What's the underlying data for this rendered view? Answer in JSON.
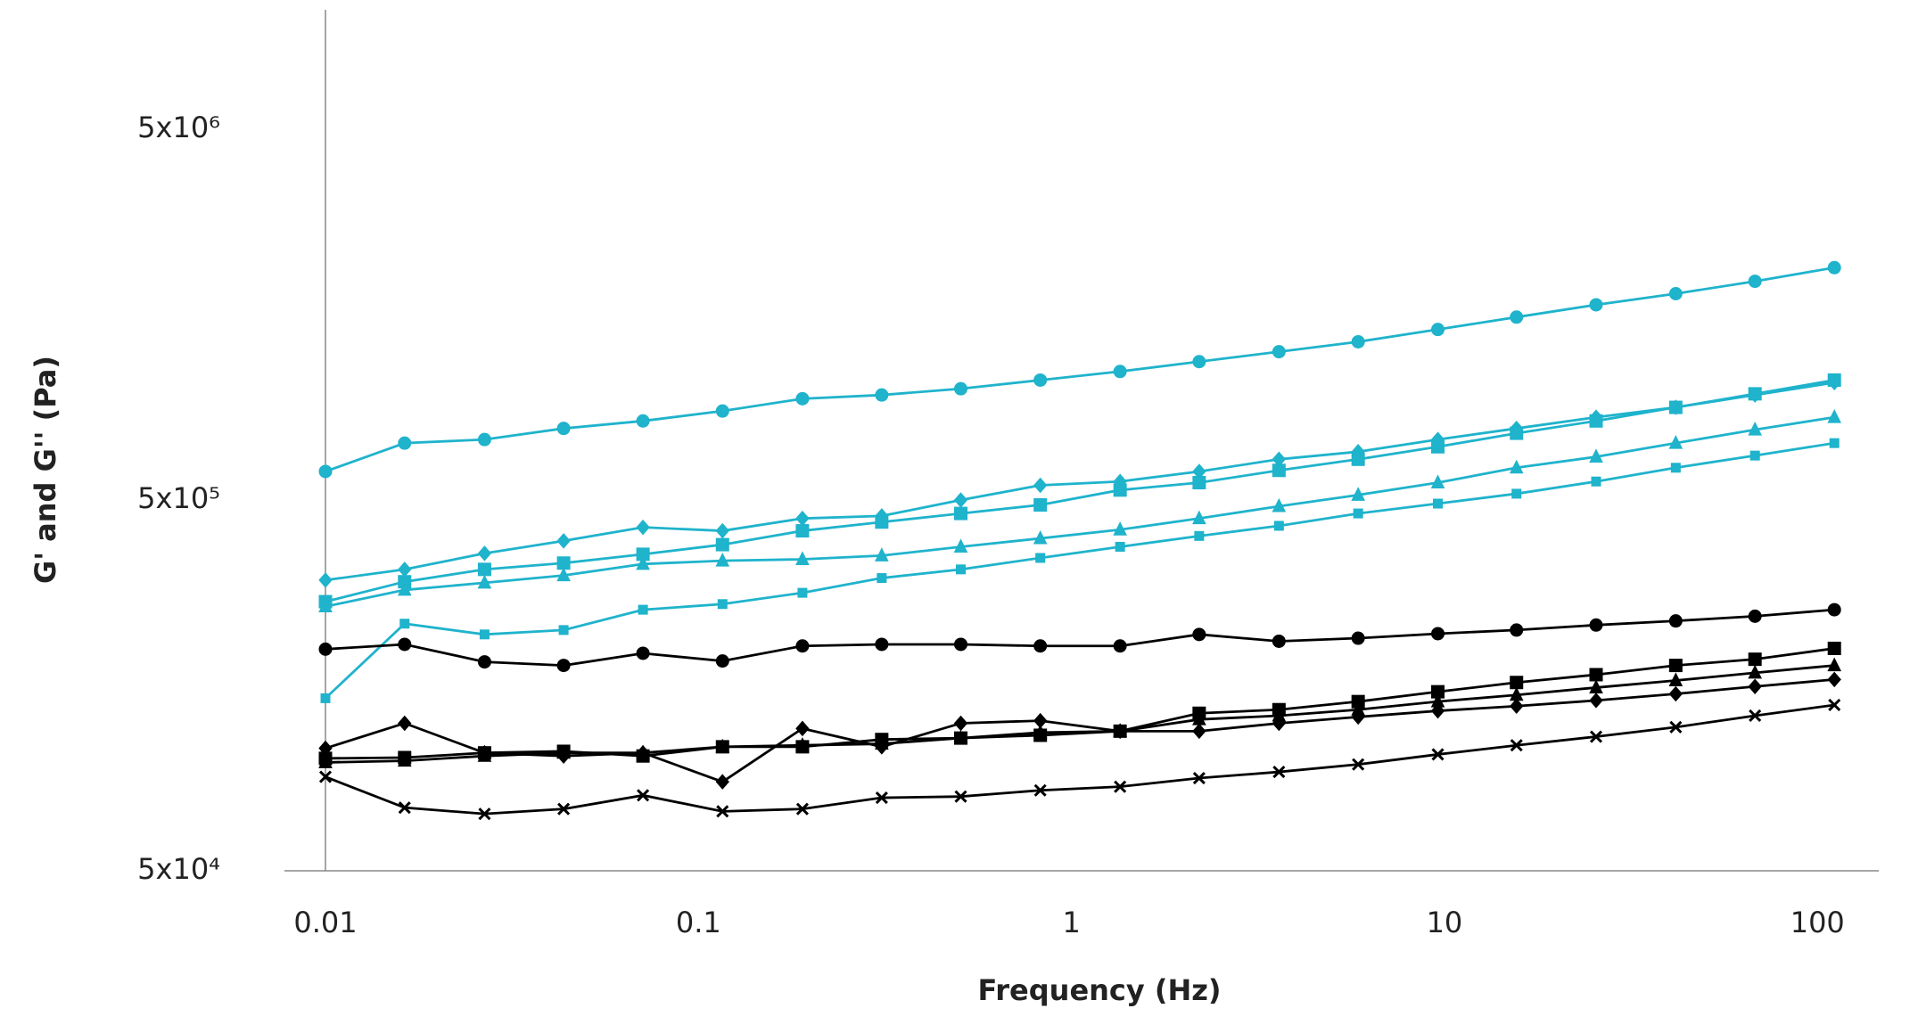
{
  "chart_data": {
    "type": "line",
    "x_label": "Frequency (Hz)",
    "y_label": "G' and G'' (Pa)",
    "x_log": true,
    "y_log": true,
    "grid": false,
    "xlim": [
      0.01,
      146
    ],
    "xticks": [
      0.01,
      0.1,
      1,
      10,
      100
    ],
    "ylim": [
      50000,
      10500000
    ],
    "yticks": [
      {
        "value": 50000,
        "label": "5x10⁴"
      },
      {
        "value": 500000,
        "label": "5x10⁵"
      },
      {
        "value": 5000000,
        "label": "5x10⁶"
      }
    ],
    "x": [
      0.01,
      0.0163,
      0.0267,
      0.0435,
      0.071,
      0.116,
      0.19,
      0.31,
      0.505,
      0.825,
      1.35,
      2.2,
      3.6,
      5.87,
      9.6,
      15.6,
      25.5,
      41.7,
      68,
      111
    ],
    "series": [
      {
        "color": "#1fb3cc",
        "marker": "circle",
        "values": [
          597000,
          712000,
          728000,
          780000,
          817000,
          869000,
          938000,
          960000,
          998000,
          1053000,
          1111000,
          1181000,
          1256000,
          1336000,
          1442000,
          1557000,
          1681000,
          1801000,
          1945000,
          2117000
        ]
      },
      {
        "color": "#1fb3cc",
        "marker": "diamond",
        "values": [
          304000,
          325000,
          359000,
          388000,
          422000,
          413000,
          446000,
          453000,
          500000,
          548000,
          561000,
          597000,
          644000,
          675000,
          728000,
          780000,
          836000,
          889000,
          960000,
          1037000
        ]
      },
      {
        "color": "#1fb3cc",
        "marker": "square",
        "values": [
          266000,
          301000,
          325000,
          338000,
          357000,
          379000,
          413000,
          436000,
          460000,
          485000,
          532000,
          557000,
          601000,
          644000,
          696000,
          757000,
          817000,
          889000,
          967000,
          1053000
        ]
      },
      {
        "color": "#1fb3cc",
        "marker": "triangle",
        "values": [
          258000,
          286000,
          299000,
          313000,
          336000,
          343000,
          346000,
          354000,
          374000,
          394000,
          416000,
          446000,
          481000,
          516000,
          557000,
          611000,
          654000,
          712000,
          774000,
          836000
        ]
      },
      {
        "color": "#1fb3cc",
        "marker": "small-square",
        "values": [
          146000,
          232000,
          217000,
          223000,
          253000,
          262000,
          281000,
          308000,
          325000,
          349000,
          374000,
          400000,
          426000,
          460000,
          489000,
          520000,
          561000,
          611000,
          659000,
          712000
        ]
      },
      {
        "color": "#000000",
        "marker": "circle",
        "values": [
          198000,
          204000,
          183000,
          179000,
          193000,
          184000,
          202000,
          204000,
          204000,
          202000,
          202000,
          217000,
          208000,
          212000,
          218000,
          223000,
          230000,
          236000,
          243000,
          253000
        ]
      },
      {
        "color": "#000000",
        "marker": "square",
        "values": [
          100500,
          101000,
          104000,
          105000,
          102000,
          108000,
          108000,
          113000,
          114000,
          116000,
          119000,
          133000,
          136000,
          143000,
          152000,
          161000,
          169000,
          179000,
          186000,
          199000
        ]
      },
      {
        "color": "#000000",
        "marker": "triangle",
        "values": [
          98000,
          99000,
          102000,
          104000,
          104000,
          108000,
          109000,
          110000,
          114000,
          118000,
          119000,
          128000,
          131000,
          136000,
          143000,
          149000,
          156000,
          163000,
          171000,
          179000
        ]
      },
      {
        "color": "#000000",
        "marker": "diamond",
        "values": [
          107000,
          125000,
          104000,
          102000,
          104000,
          86900,
          121000,
          108000,
          125000,
          127000,
          119000,
          119000,
          125000,
          130000,
          135000,
          139000,
          144000,
          150000,
          157000,
          164000
        ]
      },
      {
        "color": "#000000",
        "marker": "cross",
        "values": [
          89600,
          74000,
          71200,
          73400,
          79900,
          72300,
          73400,
          78700,
          79300,
          82400,
          84300,
          88900,
          92400,
          96800,
          103000,
          109000,
          115000,
          122000,
          131000,
          140000
        ]
      }
    ]
  }
}
